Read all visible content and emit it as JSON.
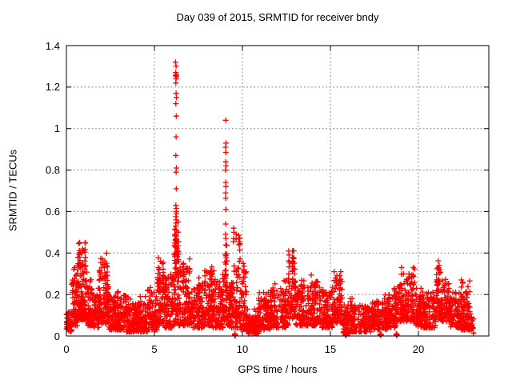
{
  "window": {
    "background": "#ffffff",
    "text_color": "#000000"
  },
  "chart_data": {
    "type": "scatter",
    "title": "Day 039 of 2015, SRMTID for receiver bndy",
    "xlabel": "GPS time / hours",
    "ylabel": "SRMTID / TECUs",
    "xlim": [
      0,
      24
    ],
    "ylim": [
      0,
      1.4
    ],
    "xticks": [
      0,
      5,
      10,
      15,
      20
    ],
    "xtick_labels": [
      "0",
      "5",
      "10",
      "15",
      "20"
    ],
    "yticks": [
      0,
      0.2,
      0.4,
      0.6,
      0.8,
      1.0,
      1.2,
      1.4
    ],
    "ytick_labels": [
      "0",
      "0.2",
      "0.4",
      "0.6",
      "0.8",
      "1",
      "1.2",
      "1.4"
    ],
    "grid": {
      "show": true,
      "color": "#8c8c8c",
      "dash": [
        2,
        2.5
      ]
    },
    "border_color": "#000000",
    "marker": {
      "shape": "plus",
      "color": "#ff0000",
      "size": 7,
      "stroke": 1.3
    },
    "series_name": "SRMTID",
    "legend": "none",
    "seed": 20150039,
    "points": [
      [
        6.2,
        1.32
      ],
      [
        6.23,
        1.3
      ],
      [
        6.21,
        1.27
      ],
      [
        6.24,
        1.26
      ],
      [
        6.22,
        1.255
      ],
      [
        6.25,
        1.25
      ],
      [
        6.23,
        1.24
      ],
      [
        6.22,
        1.22
      ],
      [
        6.23,
        1.17
      ],
      [
        6.25,
        1.15
      ],
      [
        6.22,
        1.12
      ],
      [
        6.24,
        1.06
      ],
      [
        6.23,
        0.96
      ],
      [
        6.22,
        0.87
      ],
      [
        6.25,
        0.81
      ],
      [
        6.23,
        0.79
      ],
      [
        6.24,
        0.71
      ],
      [
        6.22,
        0.63
      ],
      [
        6.24,
        0.615
      ],
      [
        6.23,
        0.6
      ],
      [
        6.25,
        0.59
      ],
      [
        6.22,
        0.575
      ],
      [
        6.24,
        0.56
      ],
      [
        6.23,
        0.545
      ],
      [
        6.21,
        0.53
      ],
      [
        6.25,
        0.51
      ],
      [
        6.22,
        0.49
      ],
      [
        6.26,
        0.47
      ],
      [
        9.05,
        1.04
      ],
      [
        9.07,
        0.93
      ],
      [
        9.04,
        0.91
      ],
      [
        9.06,
        0.885
      ],
      [
        9.05,
        0.84
      ],
      [
        9.07,
        0.82
      ],
      [
        9.04,
        0.8
      ],
      [
        9.05,
        0.74
      ],
      [
        9.06,
        0.72
      ],
      [
        9.04,
        0.69
      ],
      [
        9.05,
        0.665
      ],
      [
        9.06,
        0.61
      ],
      [
        9.05,
        0.54
      ],
      [
        9.04,
        0.49
      ],
      [
        9.06,
        0.47
      ],
      [
        9.5,
        0.52
      ],
      [
        9.52,
        0.5
      ],
      [
        9.51,
        0.47
      ],
      [
        9.49,
        0.455
      ],
      [
        9.79,
        0.47
      ],
      [
        9.81,
        0.455
      ],
      [
        9.8,
        0.44
      ],
      [
        0.92,
        0.42
      ],
      [
        0.88,
        0.4
      ],
      [
        2.05,
        0.37
      ],
      [
        5.35,
        0.36
      ],
      [
        6.65,
        0.35
      ],
      [
        12.85,
        0.38
      ],
      [
        12.87,
        0.36
      ],
      [
        21.18,
        0.34
      ],
      [
        21.2,
        0.32
      ],
      [
        10.05,
        0.35
      ],
      [
        19.15,
        0.3
      ],
      [
        15.3,
        0.28
      ],
      [
        22.52,
        0.26
      ]
    ],
    "zero_cluster_x": [
      9.58,
      15.88,
      17.85,
      18.76
    ],
    "noise_bands": [
      [
        0.0,
        0.3,
        35,
        0.02,
        0.12,
        1.5
      ],
      [
        0.3,
        0.65,
        60,
        0.05,
        0.3,
        1.5
      ],
      [
        0.65,
        1.15,
        110,
        0.08,
        0.42,
        1.8
      ],
      [
        1.15,
        1.45,
        45,
        0.05,
        0.28,
        1.8
      ],
      [
        1.45,
        1.85,
        55,
        0.04,
        0.2,
        1.5
      ],
      [
        1.85,
        2.4,
        90,
        0.06,
        0.37,
        1.8
      ],
      [
        2.4,
        3.4,
        130,
        0.03,
        0.2,
        1.8
      ],
      [
        3.4,
        4.6,
        150,
        0.02,
        0.16,
        1.5
      ],
      [
        4.6,
        5.15,
        70,
        0.03,
        0.22,
        1.6
      ],
      [
        5.15,
        5.55,
        60,
        0.05,
        0.36,
        1.6
      ],
      [
        5.55,
        6.1,
        80,
        0.04,
        0.3,
        1.6
      ],
      [
        6.1,
        6.4,
        70,
        0.05,
        0.52,
        1.2
      ],
      [
        6.4,
        7.1,
        95,
        0.05,
        0.35,
        1.8
      ],
      [
        7.1,
        7.8,
        90,
        0.04,
        0.25,
        1.6
      ],
      [
        7.8,
        8.3,
        70,
        0.05,
        0.32,
        1.7
      ],
      [
        8.3,
        9.0,
        90,
        0.04,
        0.3,
        1.8
      ],
      [
        9.0,
        9.15,
        30,
        0.08,
        0.45,
        1.2
      ],
      [
        9.15,
        9.45,
        45,
        0.04,
        0.25,
        1.5
      ],
      [
        9.45,
        9.9,
        60,
        0.04,
        0.5,
        1.8
      ],
      [
        9.9,
        10.25,
        45,
        0.03,
        0.33,
        1.8
      ],
      [
        10.25,
        10.9,
        75,
        0.01,
        0.1,
        1.4
      ],
      [
        10.9,
        11.6,
        90,
        0.03,
        0.18,
        1.5
      ],
      [
        11.6,
        12.6,
        120,
        0.04,
        0.24,
        1.7
      ],
      [
        12.6,
        13.0,
        55,
        0.08,
        0.38,
        1.3
      ],
      [
        13.0,
        13.6,
        70,
        0.05,
        0.25,
        1.6
      ],
      [
        13.6,
        14.45,
        95,
        0.05,
        0.27,
        1.7
      ],
      [
        14.45,
        15.1,
        80,
        0.04,
        0.22,
        1.6
      ],
      [
        15.1,
        15.7,
        70,
        0.06,
        0.28,
        1.5
      ],
      [
        15.7,
        16.1,
        45,
        0.01,
        0.12,
        1.4
      ],
      [
        16.1,
        17.3,
        130,
        0.02,
        0.15,
        1.5
      ],
      [
        17.3,
        18.3,
        110,
        0.03,
        0.17,
        1.5
      ],
      [
        18.3,
        18.8,
        60,
        0.04,
        0.2,
        1.5
      ],
      [
        18.8,
        19.8,
        120,
        0.07,
        0.3,
        1.7
      ],
      [
        19.8,
        21.0,
        130,
        0.04,
        0.2,
        1.6
      ],
      [
        21.0,
        21.3,
        40,
        0.08,
        0.34,
        1.4
      ],
      [
        21.3,
        21.8,
        60,
        0.07,
        0.28,
        1.6
      ],
      [
        21.8,
        22.4,
        70,
        0.04,
        0.18,
        1.5
      ],
      [
        22.4,
        22.95,
        80,
        0.03,
        0.24,
        1.8
      ],
      [
        22.95,
        23.15,
        12,
        0.0,
        0.06,
        1.2
      ]
    ]
  }
}
